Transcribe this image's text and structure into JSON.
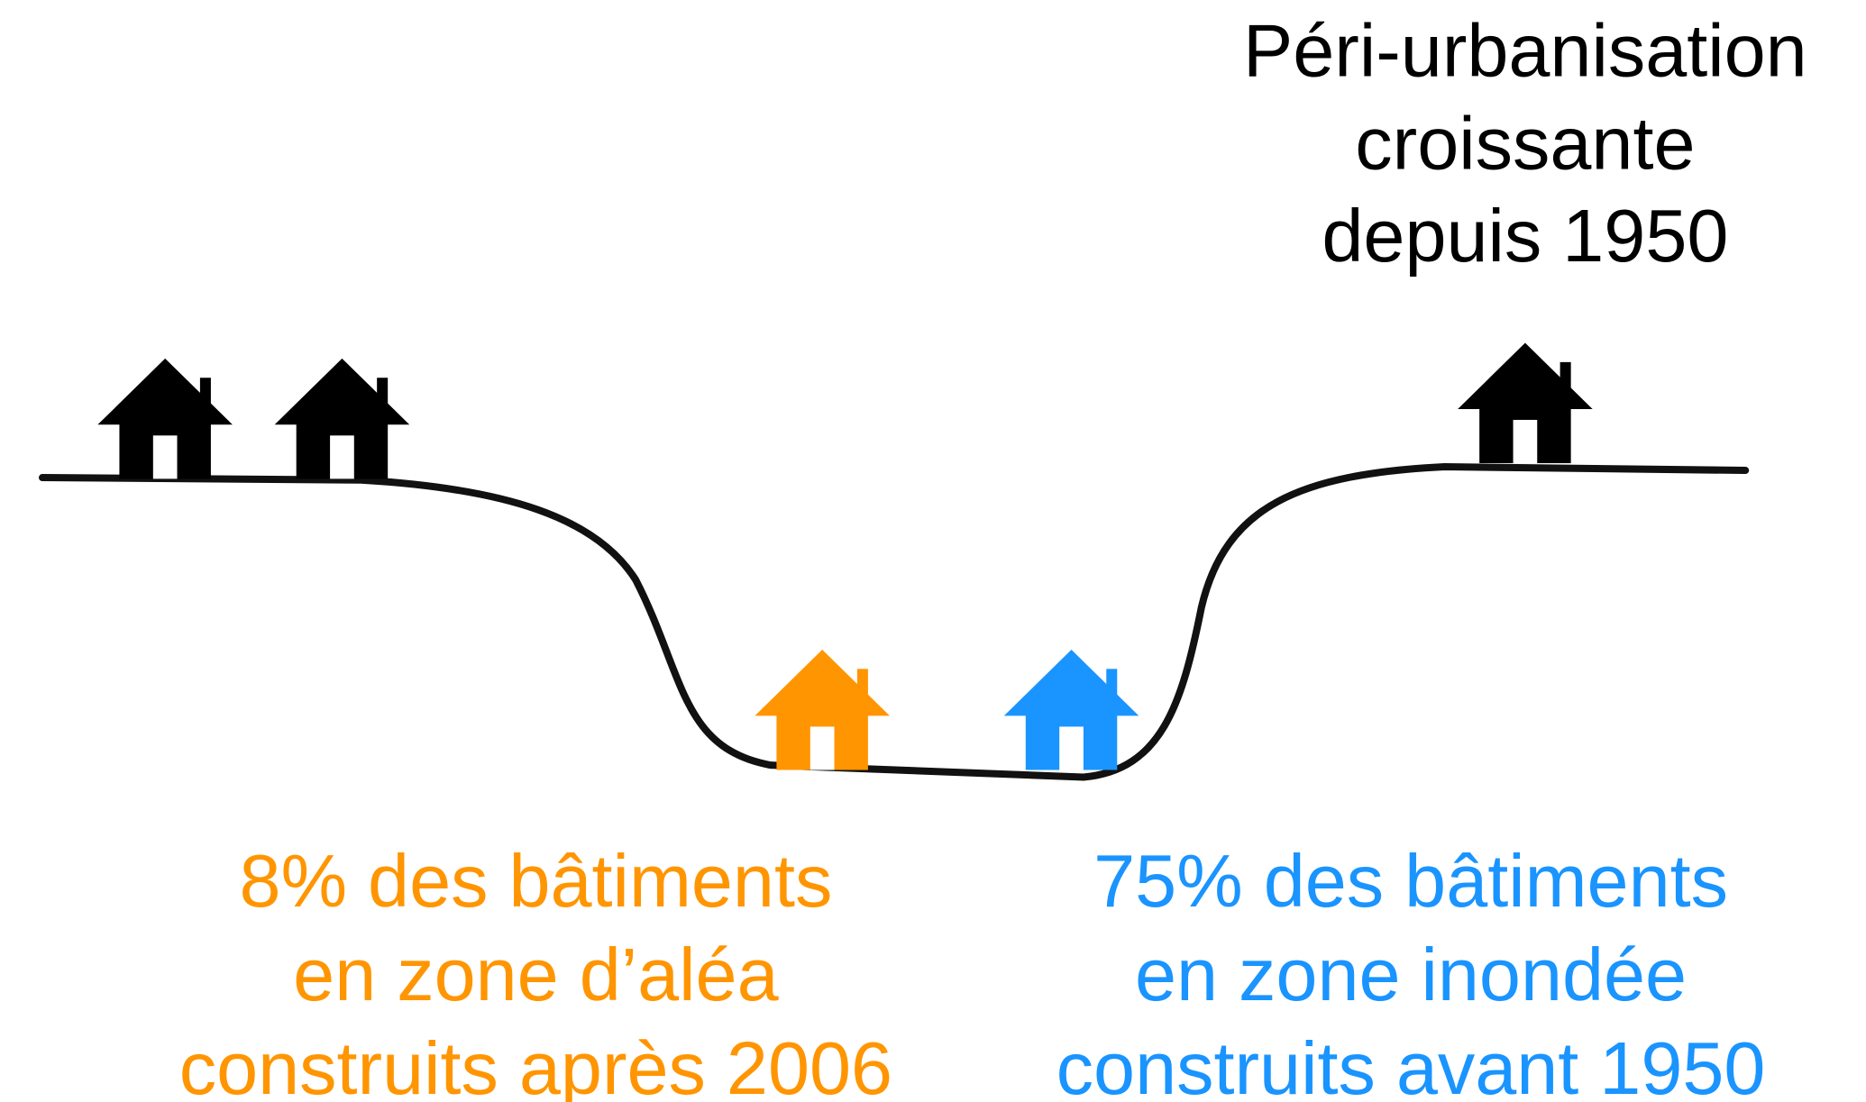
{
  "title": {
    "lines": [
      "Péri-urbanisation",
      "croissante",
      "depuis 1950"
    ]
  },
  "left_note": {
    "lines": [
      "8% des bâtiments",
      "en zone d’aléa",
      "construits après 2006"
    ]
  },
  "right_note": {
    "lines": [
      "75% des bâtiments",
      "en zone inondée",
      "construits avant 1950"
    ]
  }
}
